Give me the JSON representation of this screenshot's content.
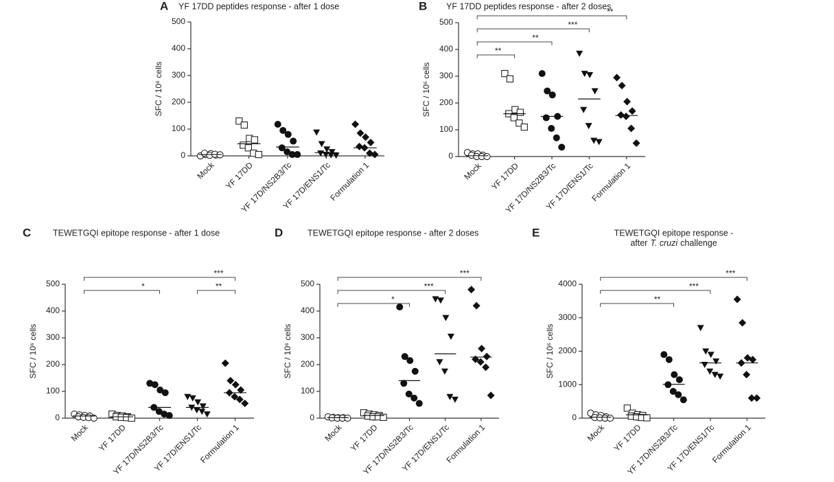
{
  "chart_data": [
    {
      "type": "dotplot",
      "panel": "A",
      "title": "YF 17DD peptides response - after 1 dose",
      "ylabel": "SFC / 10⁶ cells",
      "categories": [
        "Mock",
        "YF 17DD",
        "YF 17D/NS2B3/Tc",
        "YF 17D/ENS1/Tc",
        "Formulation 1"
      ],
      "markers": [
        "circle-open",
        "square-open",
        "circle",
        "triangle-down",
        "diamond"
      ],
      "values": [
        [
          0,
          5,
          8,
          3,
          10,
          2,
          6,
          4
        ],
        [
          130,
          115,
          65,
          60,
          40,
          30,
          10,
          5
        ],
        [
          118,
          95,
          80,
          55,
          30,
          15,
          5,
          5
        ],
        [
          88,
          45,
          25,
          15,
          10,
          5,
          3,
          2
        ],
        [
          118,
          85,
          70,
          50,
          35,
          30,
          10,
          5
        ]
      ],
      "medians": [
        5,
        45,
        33,
        12,
        30
      ],
      "ylim": [
        0,
        500
      ],
      "yticks": [
        0,
        100,
        200,
        300,
        400,
        500
      ],
      "brackets": []
    },
    {
      "type": "dotplot",
      "panel": "B",
      "title": "YF 17DD peptides response - after 2 doses",
      "ylabel": "SFC / 10⁶ cells",
      "categories": [
        "Mock",
        "YF 17DD",
        "YF 17D/NS2B3/Tc",
        "YF 17D/ENS1/Tc",
        "Formulation 1"
      ],
      "markers": [
        "circle-open",
        "square-open",
        "circle",
        "triangle-down",
        "diamond"
      ],
      "values": [
        [
          15,
          10,
          10,
          5,
          5,
          0,
          0,
          0
        ],
        [
          310,
          290,
          175,
          165,
          160,
          145,
          125,
          110
        ],
        [
          310,
          245,
          230,
          150,
          145,
          105,
          70,
          35
        ],
        [
          385,
          310,
          305,
          245,
          175,
          115,
          60,
          55
        ],
        [
          295,
          265,
          205,
          170,
          155,
          150,
          105,
          50
        ]
      ],
      "medians": [
        3,
        160,
        150,
        215,
        153
      ],
      "ylim": [
        0,
        500
      ],
      "yticks": [
        0,
        100,
        200,
        300,
        400,
        500
      ],
      "brackets": [
        {
          "from": "Mock",
          "to": "YF 17DD",
          "label": "**"
        },
        {
          "from": "Mock",
          "to": "YF 17D/NS2B3/Tc",
          "label": "**"
        },
        {
          "from": "Mock",
          "to": "YF 17D/ENS1/Tc",
          "label": "***"
        },
        {
          "from": "Mock",
          "to": "Formulation 1",
          "label": "**"
        }
      ]
    },
    {
      "type": "dotplot",
      "panel": "C",
      "title": "TEWETGQI epitope response - after 1 dose",
      "ylabel": "SFC / 10⁶ cells",
      "categories": [
        "Mock",
        "YF 17DD",
        "YF 17D/NS2B3/Tc",
        "YF 17D/ENS1/Tc",
        "Formulation 1"
      ],
      "markers": [
        "circle-open",
        "square-open",
        "circle",
        "triangle-down",
        "diamond"
      ],
      "values": [
        [
          15,
          12,
          10,
          8,
          5,
          3,
          2,
          0
        ],
        [
          15,
          10,
          8,
          5,
          5,
          3,
          2,
          0
        ],
        [
          130,
          125,
          105,
          95,
          40,
          25,
          15,
          10
        ],
        [
          80,
          75,
          60,
          45,
          40,
          30,
          25,
          15
        ],
        [
          205,
          140,
          125,
          105,
          95,
          80,
          70,
          55
        ]
      ],
      "medians": [
        8,
        5,
        40,
        40,
        95
      ],
      "ylim": [
        0,
        500
      ],
      "yticks": [
        0,
        100,
        200,
        300,
        400,
        500
      ],
      "brackets": [
        {
          "from": "Mock",
          "to": "YF 17D/NS2B3/Tc",
          "label": "*"
        },
        {
          "from": "YF 17D/ENS1/Tc",
          "to": "Formulation 1",
          "label": "**"
        },
        {
          "from": "Mock",
          "to": "Formulation 1",
          "label": "***"
        }
      ]
    },
    {
      "type": "dotplot",
      "panel": "D",
      "title": "TEWETGQI epitope response - after 2 doses",
      "ylabel": "SFC / 10⁶ cells",
      "categories": [
        "Mock",
        "YF 17DD",
        "YF 17D/NS2B3/Tc",
        "YF 17D/ENS1/Tc",
        "Formulation 1"
      ],
      "markers": [
        "circle-open",
        "square-open",
        "circle",
        "triangle-down",
        "diamond"
      ],
      "values": [
        [
          5,
          3,
          2,
          2,
          1,
          0,
          0,
          0
        ],
        [
          20,
          15,
          12,
          10,
          8,
          5,
          5,
          3
        ],
        [
          415,
          230,
          215,
          175,
          130,
          90,
          75,
          55
        ],
        [
          445,
          440,
          375,
          305,
          210,
          175,
          80,
          70
        ],
        [
          480,
          420,
          260,
          230,
          220,
          210,
          190,
          85
        ]
      ],
      "medians": [
        2,
        10,
        140,
        240,
        228
      ],
      "ylim": [
        0,
        500
      ],
      "yticks": [
        0,
        100,
        200,
        300,
        400,
        500
      ],
      "brackets": [
        {
          "from": "Mock",
          "to": "YF 17D/NS2B3/Tc",
          "label": "*"
        },
        {
          "from": "Mock",
          "to": "YF 17D/ENS1/Tc",
          "label": "***"
        },
        {
          "from": "Mock",
          "to": "Formulation 1",
          "label": "***"
        }
      ]
    },
    {
      "type": "dotplot",
      "panel": "E",
      "title": "TEWETGQI epitope response -",
      "subtitle": {
        "before": "after",
        "italic": "T. cruzi",
        "after": "challenge"
      },
      "ylabel": "SFC / 10⁶ cells",
      "categories": [
        "Mock",
        "YF 17DD",
        "YF 17D/NS2B3/Tc",
        "YF 17D/ENS1/Tc",
        "Formulation 1"
      ],
      "markers": [
        "circle-open",
        "square-open",
        "circle",
        "triangle-down",
        "diamond"
      ],
      "values": [
        [
          150,
          100,
          80,
          40,
          20,
          10,
          0,
          0
        ],
        [
          300,
          150,
          100,
          80,
          60,
          40,
          20,
          10
        ],
        [
          1900,
          1750,
          1300,
          1150,
          1000,
          800,
          700,
          550
        ],
        [
          2700,
          2000,
          1900,
          1700,
          1600,
          1400,
          1300,
          1250
        ],
        [
          3550,
          2850,
          1800,
          1750,
          1650,
          1300,
          600,
          600
        ]
      ],
      "medians": [
        30,
        100,
        1010,
        1650,
        1650
      ],
      "ylim": [
        0,
        4000
      ],
      "yticks": [
        0,
        1000,
        2000,
        3000,
        4000
      ],
      "brackets": [
        {
          "from": "Mock",
          "to": "YF 17D/NS2B3/Tc",
          "label": "**"
        },
        {
          "from": "Mock",
          "to": "YF 17D/ENS1/Tc",
          "label": "***"
        },
        {
          "from": "Mock",
          "to": "Formulation 1",
          "label": "***"
        }
      ]
    }
  ]
}
